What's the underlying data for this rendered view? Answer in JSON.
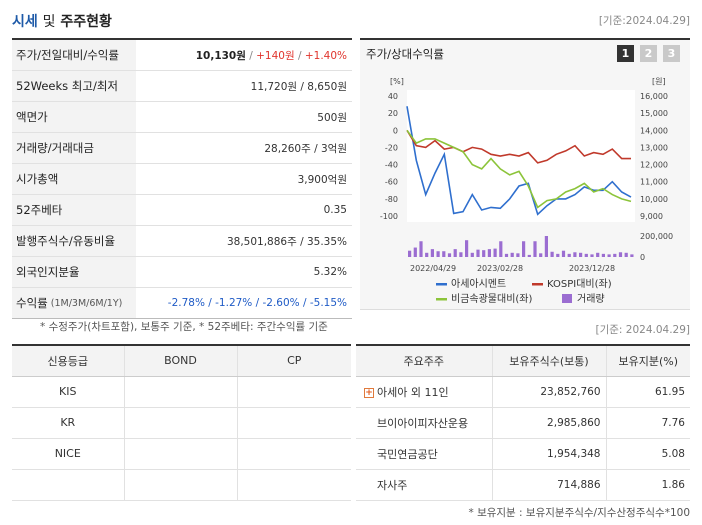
{
  "header": {
    "title_main": "시세",
    "title_sep": "및",
    "title_sub": "주주현황",
    "date": "[기준:2024.04.29]"
  },
  "quote": {
    "price_row": {
      "label": "주가/전일대비/수익률",
      "price": "10,130원",
      "slash1": " / ",
      "change": "+140원",
      "slash2": " / ",
      "rate": "+1.40%"
    },
    "rows": [
      {
        "label": "52Weeks 최고/최저",
        "value": "11,720원 / 8,650원"
      },
      {
        "label": "액면가",
        "value": "500원"
      },
      {
        "label": "거래량/거래대금",
        "value": "28,260주 / 3억원"
      },
      {
        "label": "시가총액",
        "value": "3,900억원"
      },
      {
        "label": "52주베타",
        "value": "0.35"
      },
      {
        "label": "발행주식수/유동비율",
        "value": "38,501,886주 / 35.35%"
      },
      {
        "label": "외국인지분율",
        "value": "5.32%"
      }
    ],
    "return_row": {
      "label": "수익률",
      "period": "(1M/3M/6M/1Y)",
      "value": "-2.78% / -1.27% / -2.60% / -5.15%"
    },
    "footnote": "* 수정주가(차트포함), 보통주 기준, * 52주베타: 주간수익률 기준"
  },
  "chart_panel": {
    "title": "주가/상대수익률",
    "buttons": [
      "1",
      "2",
      "3"
    ],
    "active_button": "1"
  },
  "chart_data": {
    "type": "line",
    "left_axis": {
      "unit": "[%]",
      "ticks": [
        "40",
        "20",
        "0",
        "-20",
        "-40",
        "-60",
        "-80",
        "-100"
      ],
      "range": [
        -100,
        40
      ]
    },
    "right_axis": {
      "unit": "[원]",
      "ticks": [
        "16,000",
        "15,000",
        "14,000",
        "13,000",
        "12,000",
        "11,000",
        "10,000",
        "9,000"
      ],
      "range": [
        9000,
        16000
      ]
    },
    "volume_axis": {
      "ticks": [
        "200,000",
        "0"
      ],
      "max": 200000
    },
    "x_labels": [
      "2022/04/29",
      "2023/02/28",
      "2023/12/28"
    ],
    "series": [
      {
        "name": "아세아시멘트",
        "color": "#2f6fce",
        "values": [
          28,
          -35,
          -75,
          -50,
          -28,
          -97,
          -95,
          -75,
          -93,
          -90,
          -91,
          -80,
          -65,
          -62,
          -98,
          -88,
          -80,
          -80,
          -75,
          -66,
          -70,
          -70,
          -60,
          -72,
          -78
        ]
      },
      {
        "name": "KOSPI대비(좌)",
        "color": "#c0392b",
        "values": [
          0,
          -18,
          -20,
          -12,
          -22,
          -20,
          -25,
          -20,
          -22,
          -28,
          -30,
          -28,
          -30,
          -26,
          -38,
          -35,
          -28,
          -24,
          -18,
          -30,
          -26,
          -28,
          -22,
          -33,
          -33
        ]
      },
      {
        "name": "비금속광물대비(좌)",
        "color": "#8cc43a",
        "values": [
          0,
          -15,
          -10,
          -10,
          -15,
          -20,
          -25,
          -40,
          -45,
          -33,
          -45,
          -52,
          -48,
          -65,
          -90,
          -82,
          -80,
          -72,
          -68,
          -62,
          -72,
          -68,
          -75,
          -80,
          -83
        ]
      }
    ],
    "volume": {
      "name": "거래량",
      "color": "#9b6dd1",
      "values": [
        60000,
        90000,
        150000,
        40000,
        75000,
        55000,
        55000,
        35000,
        75000,
        45000,
        160000,
        40000,
        70000,
        65000,
        75000,
        80000,
        150000,
        30000,
        40000,
        35000,
        150000,
        20000,
        150000,
        35000,
        200000,
        50000,
        30000,
        60000,
        30000,
        45000,
        40000,
        30000,
        25000,
        40000,
        30000,
        25000,
        30000,
        45000,
        40000,
        25000
      ]
    },
    "legend": [
      "아세아시멘트",
      "KOSPI대비(좌)",
      "비금속광물대비(좌)",
      "거래량"
    ],
    "legend_placement": "bottom"
  },
  "date2": "[기준: 2024.04.29]",
  "credit": {
    "headers": [
      "신용등급",
      "BOND",
      "CP"
    ],
    "rows": [
      [
        "KIS",
        "",
        ""
      ],
      [
        "KR",
        "",
        ""
      ],
      [
        "NICE",
        "",
        ""
      ],
      [
        "",
        "",
        ""
      ]
    ]
  },
  "holders": {
    "headers": [
      "주요주주",
      "보유주식수(보통)",
      "보유지분(%)"
    ],
    "rows": [
      {
        "name": "아세아 외 11인",
        "shares": "23,852,760",
        "pct": "61.95",
        "expand": "+"
      },
      {
        "name": "브이아이피자산운용",
        "shares": "2,985,860",
        "pct": "7.76"
      },
      {
        "name": "국민연금공단",
        "shares": "1,954,348",
        "pct": "5.08"
      },
      {
        "name": "자사주",
        "shares": "714,886",
        "pct": "1.86"
      }
    ],
    "footnote": "* 보유지분 : 보유지분주식수/지수산정주식수*100"
  }
}
